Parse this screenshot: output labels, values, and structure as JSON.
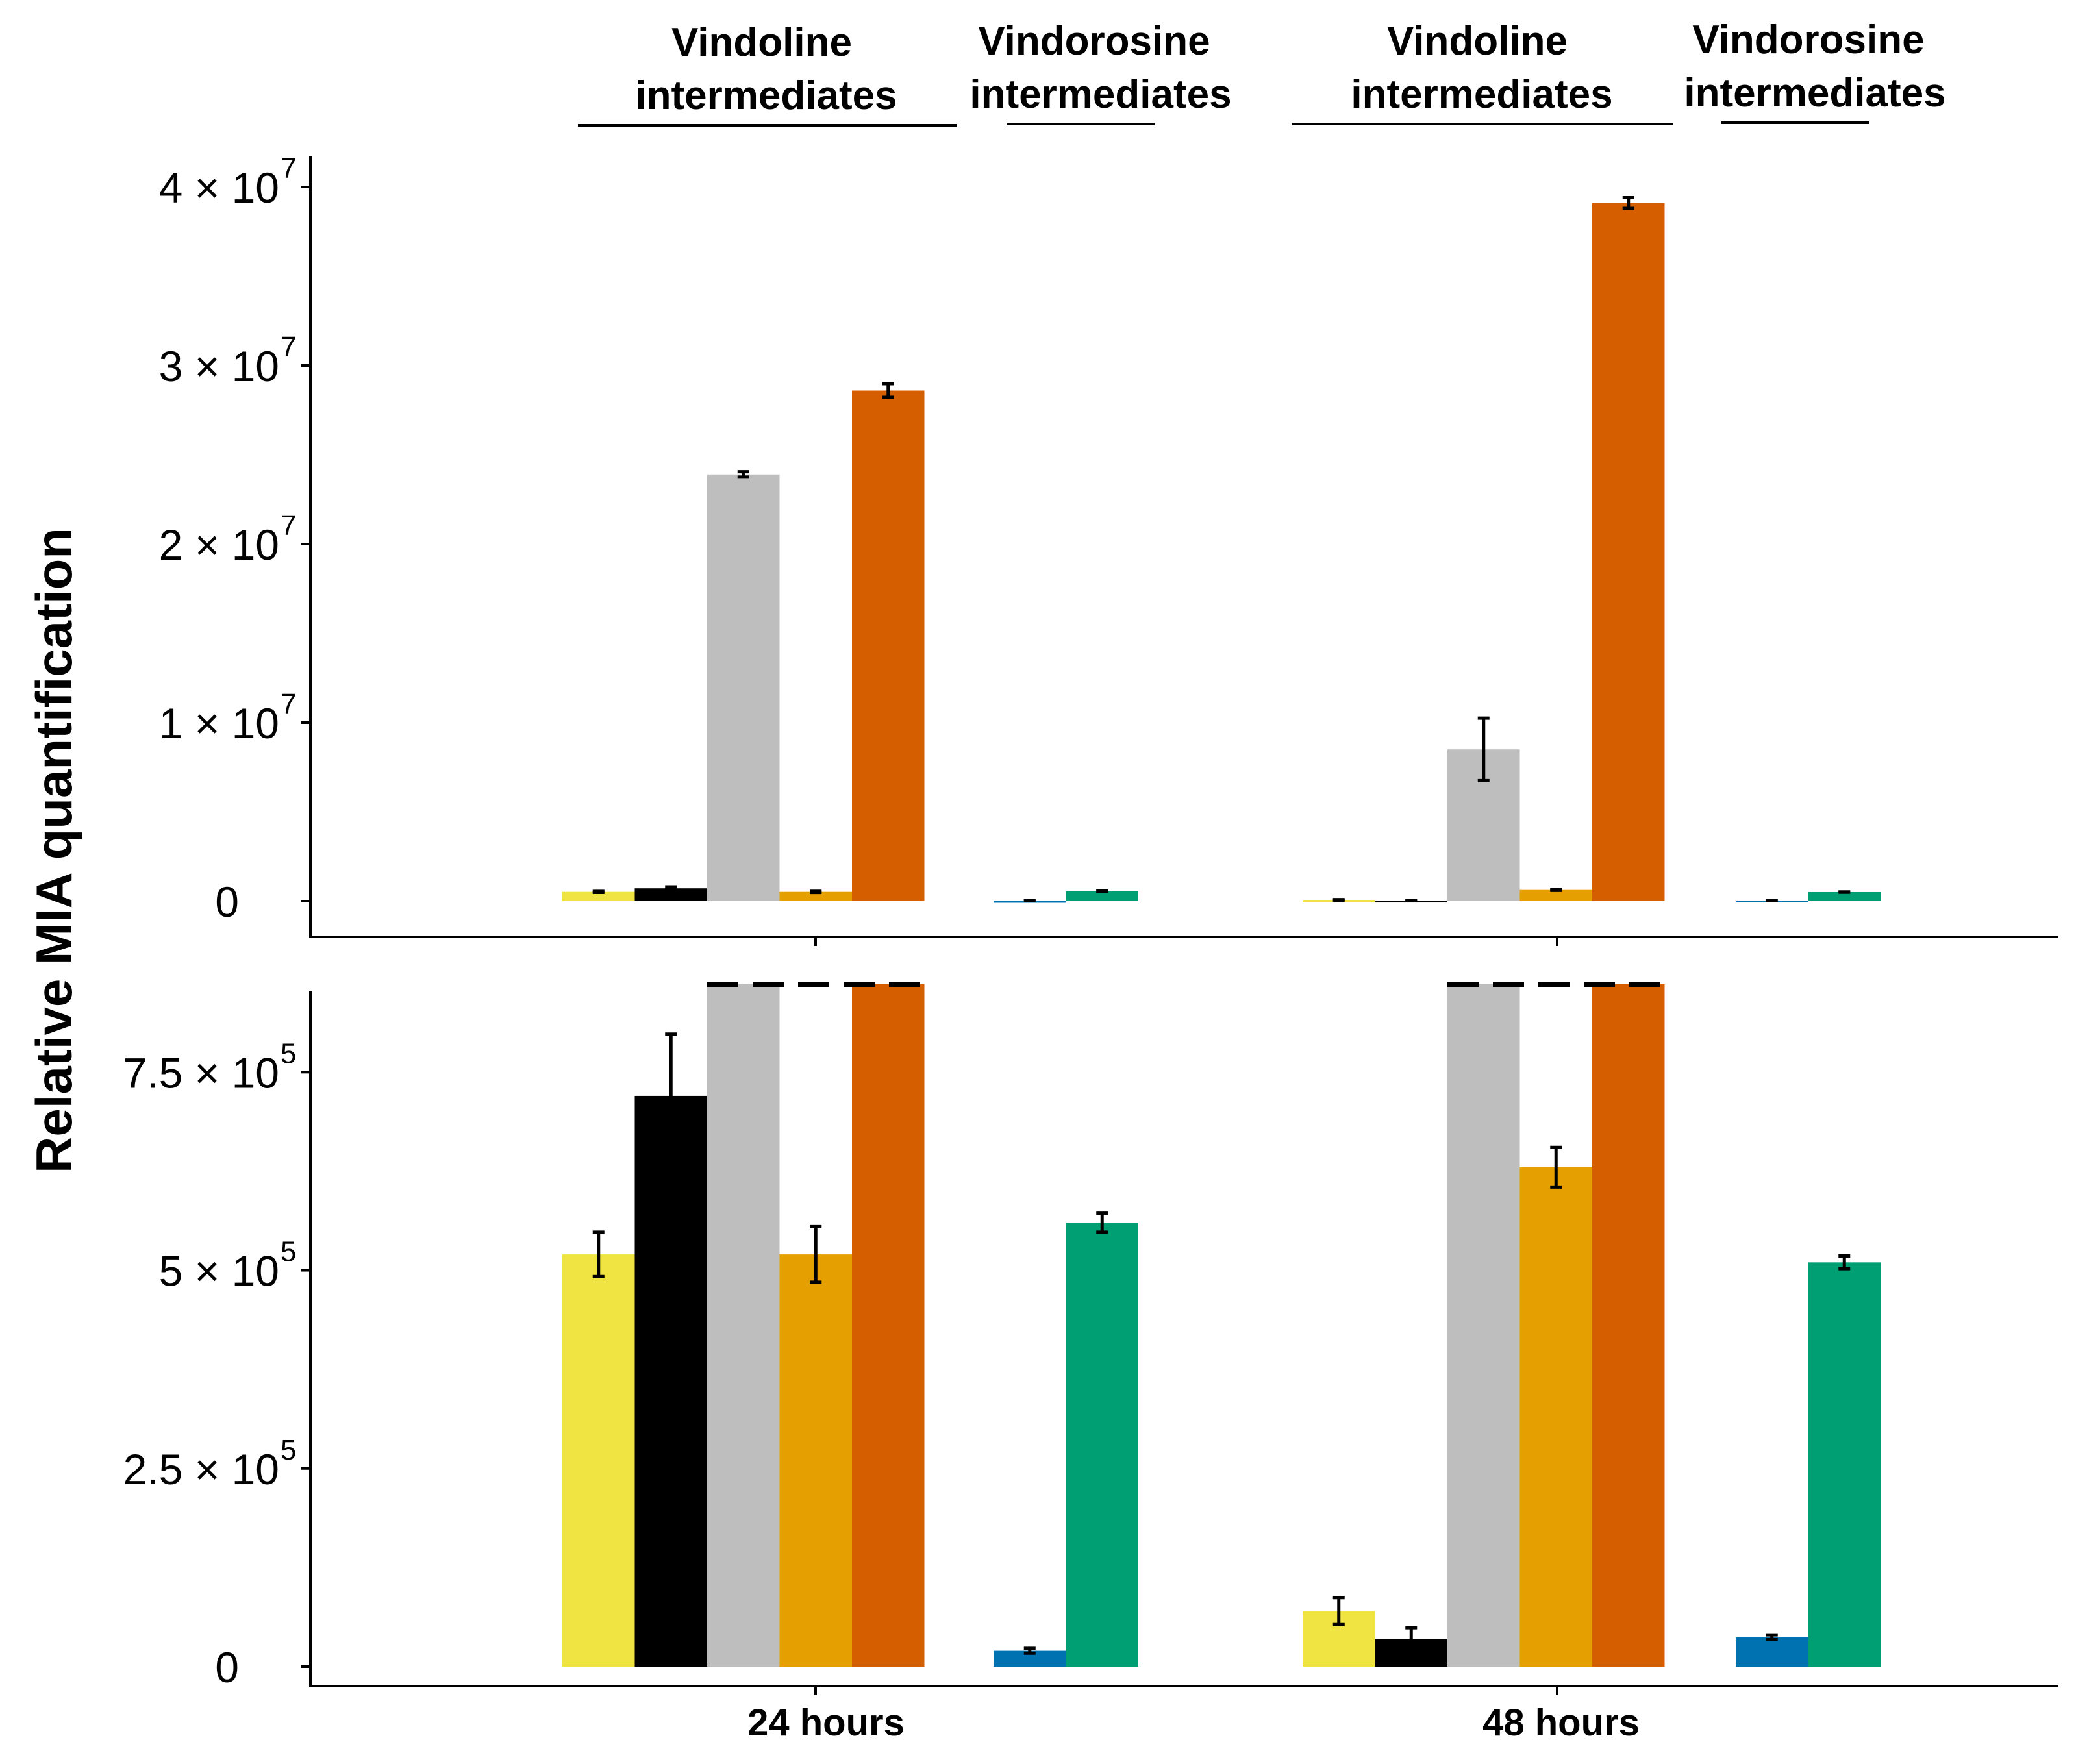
{
  "chart_data": {
    "type": "bar",
    "ylabel": "Relative MIA quantification",
    "categories": [
      "24 hours",
      "48 hours"
    ],
    "group_labels": [
      {
        "line1": "Vindoline",
        "line2": "intermediates"
      },
      {
        "line1": "Vindorosine",
        "line2": "intermediates"
      },
      {
        "line1": "Vindoline",
        "line2": "intermediates"
      },
      {
        "line1": "Vindorosine",
        "line2": "intermediates"
      }
    ],
    "colors": {
      "yellow": "#F0E442",
      "black": "#000000",
      "grey": "#BEBEBE",
      "orange": "#E69F00",
      "vermillion": "#D55E00",
      "blue": "#0072B2",
      "green": "#009E73"
    },
    "bars_24h": [
      {
        "color": "yellow",
        "value": 520000,
        "err": 28000
      },
      {
        "color": "black",
        "value": 720000,
        "err": 78000
      },
      {
        "color": "grey",
        "value": 23900000,
        "err": 150000
      },
      {
        "color": "orange",
        "value": 520000,
        "err": 35000
      },
      {
        "color": "vermillion",
        "value": 28600000,
        "err": 380000
      },
      {
        "color": "blue",
        "value": 20000,
        "err": 3000
      },
      {
        "color": "green",
        "value": 560000,
        "err": 12000
      }
    ],
    "bars_48h": [
      {
        "color": "yellow",
        "value": 70000,
        "err": 17000
      },
      {
        "color": "black",
        "value": 35000,
        "err": 14000
      },
      {
        "color": "grey",
        "value": 8500000,
        "err": 1750000
      },
      {
        "color": "orange",
        "value": 630000,
        "err": 25000
      },
      {
        "color": "vermillion",
        "value": 39100000,
        "err": 300000
      },
      {
        "color": "blue",
        "value": 37000,
        "err": 3000
      },
      {
        "color": "green",
        "value": 510000,
        "err": 8000
      }
    ],
    "panels": [
      {
        "name": "full-scale",
        "ylim": [
          0,
          42000000
        ],
        "yticks": [
          {
            "value": 0,
            "label": "0",
            "exp": ""
          },
          {
            "value": 10000000,
            "label": "1 × 10",
            "exp": "7"
          },
          {
            "value": 20000000,
            "label": "2 × 10",
            "exp": "7"
          },
          {
            "value": 30000000,
            "label": "3 × 10",
            "exp": "7"
          },
          {
            "value": 40000000,
            "label": "4 × 10",
            "exp": "7"
          }
        ]
      },
      {
        "name": "zoomed",
        "ylim": [
          0,
          860000
        ],
        "yticks": [
          {
            "value": 0,
            "label": "0",
            "exp": ""
          },
          {
            "value": 250000,
            "label": "2.5 × 10",
            "exp": "5"
          },
          {
            "value": 500000,
            "label": "5 × 10",
            "exp": "5"
          },
          {
            "value": 750000,
            "label": "7.5 × 10",
            "exp": "5"
          }
        ],
        "truncated": true
      }
    ],
    "legend": "none",
    "grid": false
  }
}
